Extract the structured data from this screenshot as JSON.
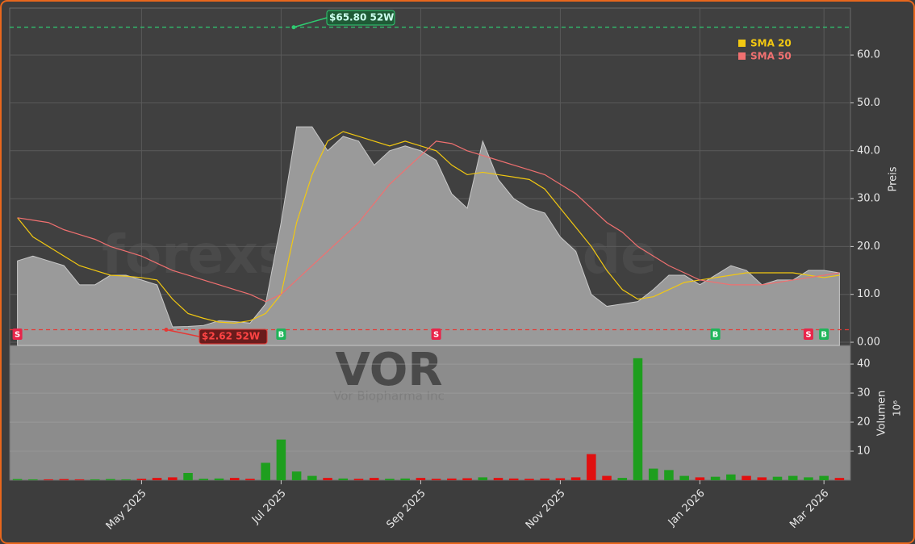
{
  "chart_data": [
    {
      "type": "area",
      "watermark": "forexsignale.trade",
      "symbol": "VOR",
      "company": "Vor Biopharma Inc",
      "y_label": "Preis",
      "categories": [
        null,
        null,
        null,
        null,
        null,
        null,
        null,
        null,
        "May 2025",
        null,
        null,
        null,
        null,
        null,
        null,
        null,
        null,
        "Jul 2025",
        null,
        null,
        null,
        null,
        null,
        null,
        null,
        null,
        "Sep 2025",
        null,
        null,
        null,
        null,
        null,
        null,
        null,
        null,
        "Nov 2025",
        null,
        null,
        null,
        null,
        null,
        null,
        null,
        null,
        "Jan 2026",
        null,
        null,
        null,
        null,
        null,
        null,
        null,
        "Mar 2026",
        null
      ],
      "values": [
        17,
        18,
        17,
        16,
        12,
        12,
        14,
        14,
        13,
        12,
        3.2,
        3.3,
        3.5,
        4.5,
        4.3,
        4,
        8,
        25,
        45,
        45,
        40,
        43,
        42,
        37,
        40,
        41,
        40,
        38,
        31,
        28,
        42,
        34,
        30,
        28,
        27,
        22,
        19,
        10,
        7.5,
        8,
        8.5,
        11,
        14,
        14,
        12,
        14,
        16,
        15,
        12,
        13,
        13,
        15,
        15,
        14.5
      ],
      "color": "#9a9a9a",
      "series": [
        {
          "name": "SMA 20",
          "color": "#f2c811",
          "values": [
            26,
            22,
            20,
            18,
            16,
            15,
            14,
            13.8,
            13.5,
            13,
            9,
            6,
            5,
            4.2,
            4,
            4.5,
            6,
            10,
            25,
            35,
            42,
            44,
            43,
            42,
            41,
            42,
            41,
            40,
            37,
            35,
            35.5,
            35,
            34.5,
            34,
            32,
            28,
            24,
            20,
            15,
            11,
            9,
            9.5,
            11,
            12.5,
            13,
            13.5,
            14,
            14.5,
            14.5,
            14.5,
            14.5,
            14,
            13.5,
            14
          ]
        },
        {
          "name": "SMA 50",
          "color": "#f07070",
          "values": [
            26,
            25.5,
            25,
            23.5,
            22.5,
            21.5,
            20,
            19,
            18,
            16.5,
            15,
            14,
            13,
            12,
            11,
            10,
            8.5,
            10,
            13,
            16,
            19,
            22,
            25,
            29,
            33,
            36,
            39,
            42,
            41.5,
            40,
            39,
            38,
            37,
            36,
            35,
            33,
            31,
            28,
            25,
            23,
            20,
            18,
            16,
            14.5,
            13,
            12.5,
            12,
            12,
            12,
            12.5,
            13,
            13.5,
            14,
            14.5
          ]
        }
      ],
      "signals": [
        "S",
        null,
        null,
        null,
        null,
        null,
        null,
        null,
        null,
        null,
        null,
        null,
        null,
        null,
        null,
        null,
        null,
        "B",
        null,
        null,
        null,
        null,
        null,
        null,
        null,
        null,
        null,
        "S",
        null,
        null,
        null,
        null,
        null,
        null,
        null,
        null,
        null,
        null,
        null,
        null,
        null,
        null,
        null,
        null,
        null,
        "B",
        null,
        null,
        null,
        null,
        null,
        "S",
        "B",
        null
      ],
      "signal_colors": {
        "B": "#1fb55a",
        "S": "#e8254a"
      },
      "annotations": [
        {
          "text": "$65.80 52W",
          "value": 65.8,
          "color": "#2ecc71"
        },
        {
          "text": "$2.62 52W",
          "value": 2.62,
          "color": "#e53935"
        }
      ],
      "ylim": [
        -0.67,
        69.8
      ],
      "yticks": [
        {
          "value": 0,
          "label": "0.00"
        },
        {
          "value": 10,
          "label": "10.0"
        },
        {
          "value": 20,
          "label": "20.0"
        },
        {
          "value": 30,
          "label": "30.0"
        },
        {
          "value": 40,
          "label": "40.0"
        },
        {
          "value": 50,
          "label": "50.0"
        },
        {
          "value": 60,
          "label": "60.0"
        }
      ],
      "grid": true
    },
    {
      "type": "bar",
      "y_label": "Volumen",
      "scale_label": "10⁶",
      "values": [
        0.4,
        0.3,
        0.3,
        0.4,
        0.3,
        0.3,
        0.4,
        0.3,
        0.5,
        0.8,
        1,
        2.5,
        0.5,
        0.6,
        0.8,
        0.5,
        6,
        14,
        3,
        1.5,
        0.8,
        0.6,
        0.5,
        0.8,
        0.5,
        0.6,
        0.8,
        0.5,
        0.6,
        0.7,
        1,
        0.8,
        0.6,
        0.5,
        0.6,
        0.7,
        1,
        9,
        1.5,
        0.8,
        42,
        4,
        3.5,
        1.5,
        1,
        1.2,
        2,
        1.5,
        1,
        1.2,
        1.5,
        1,
        1.5,
        0.8
      ],
      "up_color": "#1e9e1e",
      "down_color": "#e01010",
      "ylim": [
        0,
        46.4
      ],
      "yticks": [
        10,
        20,
        30,
        40
      ],
      "grid": true
    }
  ]
}
